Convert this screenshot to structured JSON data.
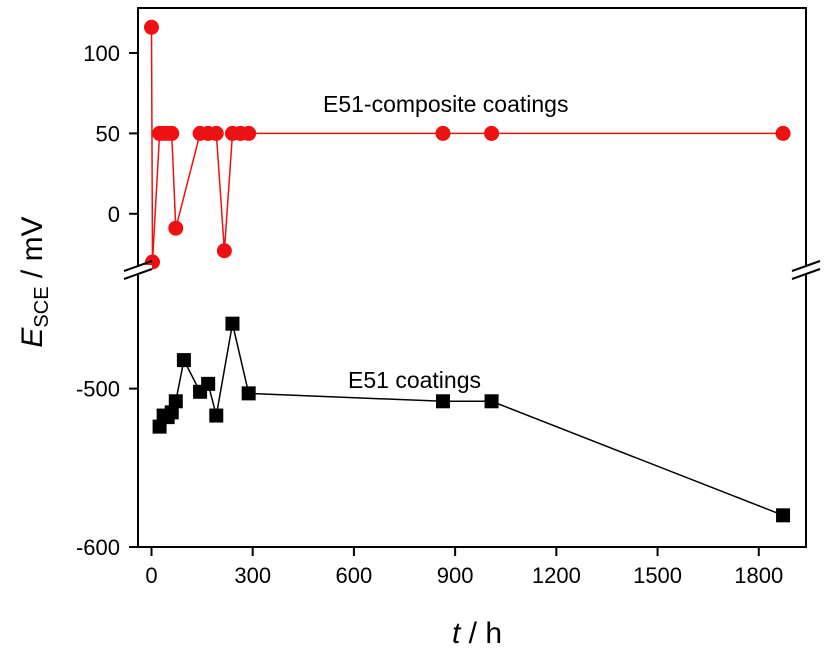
{
  "chart_data": {
    "type": "scatter",
    "title": "",
    "xlabel": {
      "var": "t",
      "unit": " / h"
    },
    "ylabel": {
      "var": "E",
      "sub": "SCE",
      "unit": " / mV"
    },
    "axis_break": true,
    "xlim": [
      -40,
      1940
    ],
    "xticks": [
      0,
      300,
      600,
      900,
      1200,
      1500,
      1800
    ],
    "upper_panel": {
      "ylim": [
        -30,
        128
      ],
      "yticks": [
        0,
        50,
        100
      ]
    },
    "lower_panel": {
      "ylim": [
        -600,
        -439
      ],
      "yticks": [
        -500,
        -600
      ]
    },
    "colors": {
      "composite": "#ee1111",
      "e51": "#000000"
    },
    "series": [
      {
        "name": "E51-composite coatings",
        "panel": "upper",
        "marker": "circle",
        "x": [
          0,
          3,
          24,
          36,
          48,
          60,
          72,
          144,
          168,
          192,
          216,
          240,
          264,
          288,
          864,
          1008,
          1872
        ],
        "y": [
          116,
          -30,
          50,
          50,
          50,
          50,
          -9,
          50,
          50,
          50,
          -23,
          50,
          50,
          50,
          50,
          50,
          50
        ]
      },
      {
        "name": "E51 coatings",
        "panel": "lower",
        "marker": "square",
        "x": [
          24,
          36,
          48,
          60,
          72,
          96,
          144,
          168,
          192,
          240,
          288,
          864,
          1008,
          1872
        ],
        "y": [
          -524,
          -517,
          -518,
          -515,
          -508,
          -482,
          -502,
          -497,
          -517,
          -459,
          -503,
          -508,
          -508,
          -580
        ]
      }
    ],
    "annotations": [
      "E51-composite coatings",
      "E51 coatings"
    ]
  }
}
